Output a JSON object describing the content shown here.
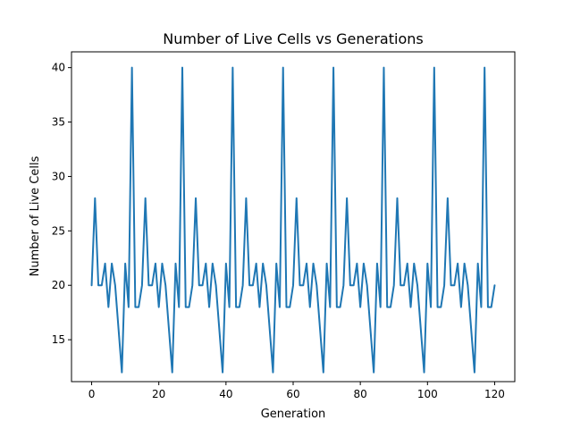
{
  "chart_data": {
    "type": "line",
    "title": "Number of Live Cells vs Generations",
    "xlabel": "Generation",
    "ylabel": "Number of Live Cells",
    "xlim": [
      -6,
      126
    ],
    "ylim": [
      11.15,
      41.45
    ],
    "xticks": [
      0,
      20,
      40,
      60,
      80,
      100,
      120
    ],
    "yticks": [
      15,
      20,
      25,
      30,
      35,
      40
    ],
    "grid": false,
    "legend": "none",
    "color": "#1f77b4",
    "series": [
      {
        "x": [
          0,
          1,
          2,
          3,
          4,
          5,
          6,
          7,
          8,
          9,
          10,
          11,
          12,
          13,
          14,
          15,
          16,
          17,
          18,
          19,
          20,
          21,
          22,
          23,
          24,
          25,
          26,
          27,
          28,
          29,
          30,
          31,
          32,
          33,
          34,
          35,
          36,
          37,
          38,
          39,
          40,
          41,
          42,
          43,
          44,
          45,
          46,
          47,
          48,
          49,
          50,
          51,
          52,
          53,
          54,
          55,
          56,
          57,
          58,
          59,
          60,
          61,
          62,
          63,
          64,
          65,
          66,
          67,
          68,
          69,
          70,
          71,
          72,
          73,
          74,
          75,
          76,
          77,
          78,
          79,
          80,
          81,
          82,
          83,
          84,
          85,
          86,
          87,
          88,
          89,
          90,
          91,
          92,
          93,
          94,
          95,
          96,
          97,
          98,
          99,
          100,
          101,
          102,
          103,
          104,
          105,
          106,
          107,
          108,
          109,
          110,
          111,
          112,
          113,
          114,
          115,
          116,
          117,
          118,
          119,
          120
        ],
        "values": [
          20,
          28,
          20,
          20,
          22,
          18,
          22,
          20,
          16,
          12,
          22,
          18,
          40,
          18,
          18,
          20,
          28,
          20,
          20,
          22,
          18,
          22,
          20,
          16,
          12,
          22,
          18,
          40,
          18,
          18,
          20,
          28,
          20,
          20,
          22,
          18,
          22,
          20,
          16,
          12,
          22,
          18,
          40,
          18,
          18,
          20,
          28,
          20,
          20,
          22,
          18,
          22,
          20,
          16,
          12,
          22,
          18,
          40,
          18,
          18,
          20,
          28,
          20,
          20,
          22,
          18,
          22,
          20,
          16,
          12,
          22,
          18,
          40,
          18,
          18,
          20,
          28,
          20,
          20,
          22,
          18,
          22,
          20,
          16,
          12,
          22,
          18,
          40,
          18,
          18,
          20,
          28,
          20,
          20,
          22,
          18,
          22,
          20,
          16,
          12,
          22,
          18,
          40,
          18,
          18,
          20,
          28,
          20,
          20,
          22,
          18,
          22,
          20,
          16,
          12,
          22,
          18,
          40,
          18,
          18,
          20
        ]
      }
    ]
  }
}
